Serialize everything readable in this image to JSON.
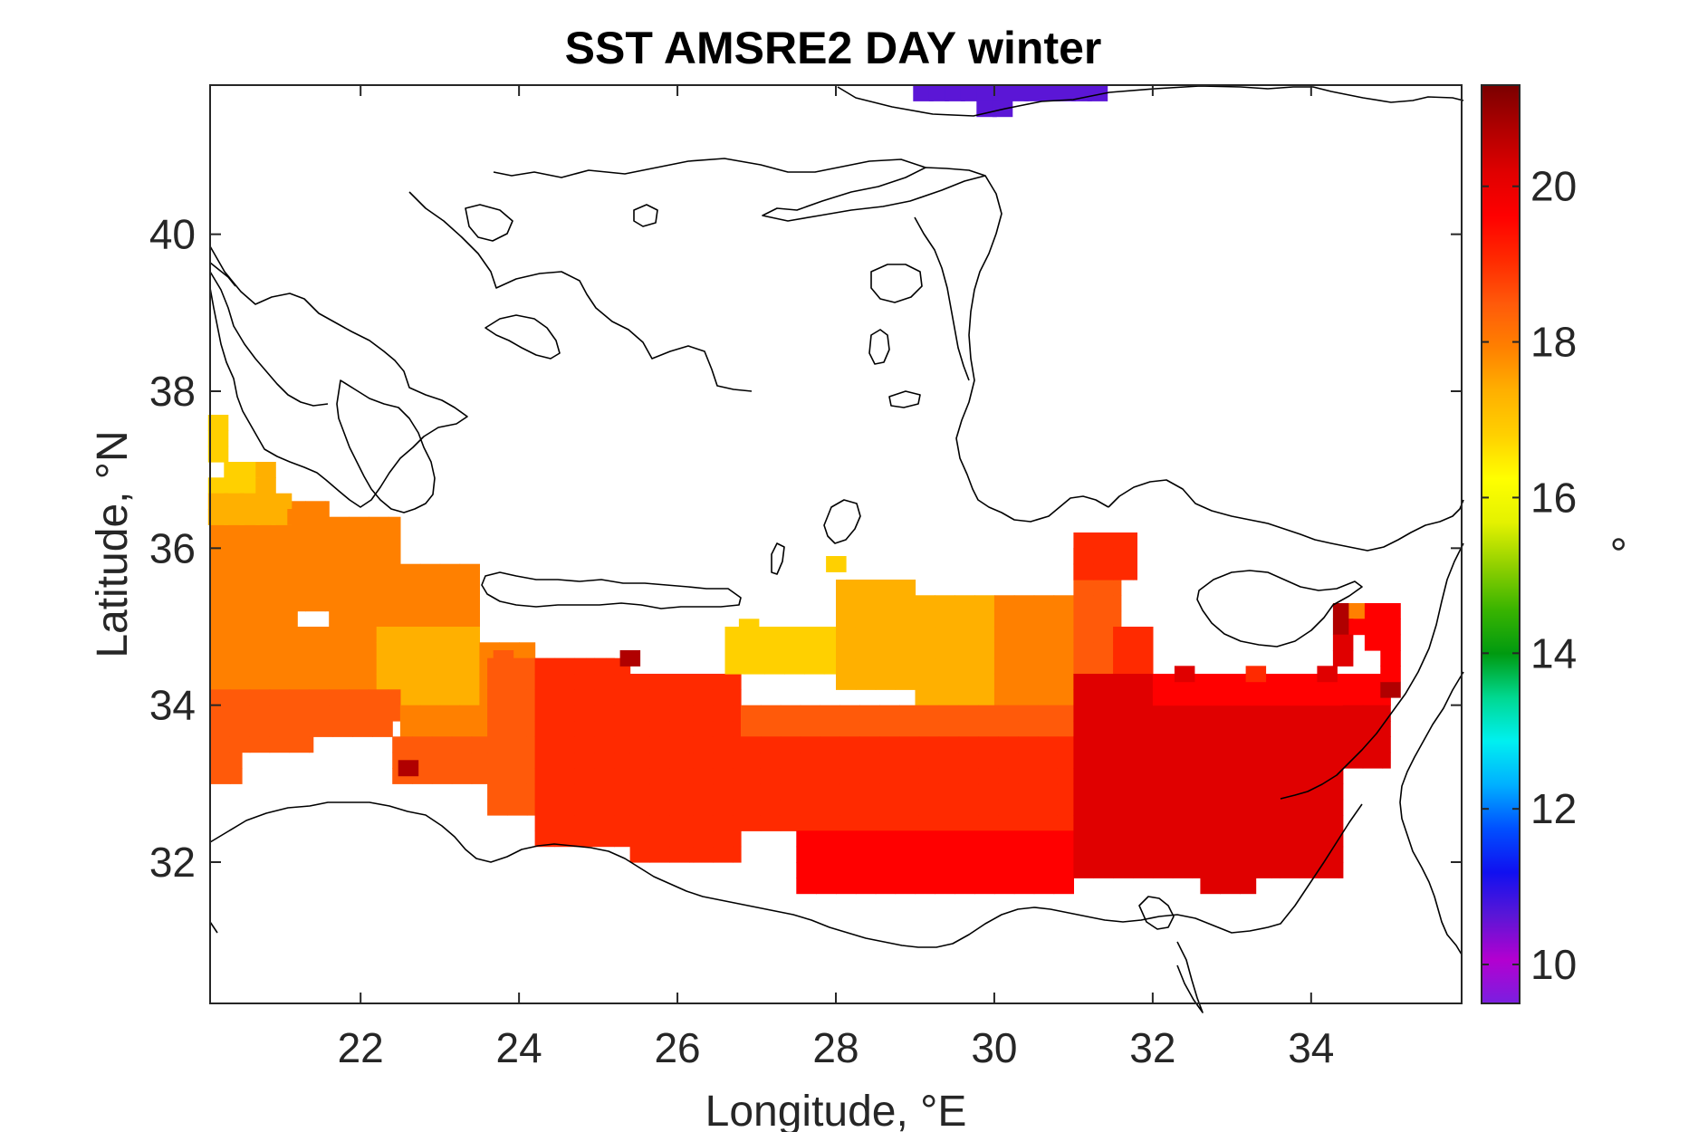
{
  "chart_data": {
    "type": "heatmap",
    "title": "SST AMSRE2 DAY winter",
    "xlabel": "Longitude, °E",
    "ylabel": "Latitude, °N",
    "colorbar_label": "°",
    "xlim": [
      20.1,
      35.9
    ],
    "ylim": [
      30.2,
      41.9
    ],
    "xticks": [
      "22",
      "24",
      "26",
      "28",
      "30",
      "32",
      "34"
    ],
    "yticks": [
      "32",
      "34",
      "36",
      "38",
      "40"
    ],
    "colorbar_ticks": [
      "10",
      "12",
      "14",
      "16",
      "18",
      "20"
    ],
    "colorbar_range": [
      9.5,
      21.3
    ],
    "colormap": [
      "#7a1fe0",
      "#b300d0",
      "#5b16d6",
      "#1010f0",
      "#0050ff",
      "#00b0ff",
      "#00f0f0",
      "#00d890",
      "#009a10",
      "#39b400",
      "#90d000",
      "#e4f200",
      "#ffff00",
      "#ffd000",
      "#ffb000",
      "#ff8000",
      "#ff5a0a",
      "#ff2a00",
      "#ff0000",
      "#e00000",
      "#b00000",
      "#7a0000"
    ],
    "grid": false,
    "cell_size_deg": [
      0.25,
      0.2
    ],
    "cells": [
      [
        29.1,
        41.8,
        10.6
      ],
      [
        29.3,
        41.8,
        10.6
      ],
      [
        29.5,
        41.8,
        10.6
      ],
      [
        29.7,
        41.8,
        10.6
      ],
      [
        29.9,
        41.8,
        10.6
      ],
      [
        30.1,
        41.8,
        10.6
      ],
      [
        30.3,
        41.8,
        10.6
      ],
      [
        30.5,
        41.8,
        10.6
      ],
      [
        30.7,
        41.8,
        10.6
      ],
      [
        30.9,
        41.8,
        10.6
      ],
      [
        31.1,
        41.8,
        10.6
      ],
      [
        31.3,
        41.8,
        10.6
      ],
      [
        29.9,
        41.6,
        10.6
      ],
      [
        30.1,
        41.6,
        10.6
      ],
      [
        20.2,
        37.6,
        16.9
      ],
      [
        20.2,
        37.4,
        16.9
      ],
      [
        20.2,
        37.2,
        16.9
      ],
      [
        20.4,
        37.0,
        17.0
      ],
      [
        20.6,
        37.0,
        17.0
      ],
      [
        20.8,
        37.0,
        17.2
      ],
      [
        20.2,
        36.8,
        17.0
      ],
      [
        20.4,
        36.8,
        16.8
      ],
      [
        20.6,
        36.8,
        17.0
      ],
      [
        20.8,
        36.8,
        17.2
      ],
      [
        20.2,
        36.6,
        17.2
      ],
      [
        20.4,
        36.6,
        17.2
      ],
      [
        20.6,
        36.6,
        17.3
      ],
      [
        20.8,
        36.6,
        17.4
      ],
      [
        21.0,
        36.6,
        17.5
      ],
      [
        20.2,
        36.4,
        17.4
      ],
      [
        20.4,
        36.4,
        17.5
      ],
      [
        20.6,
        36.4,
        17.6
      ],
      [
        20.8,
        36.4,
        17.6
      ],
      [
        21.0,
        36.4,
        17.6
      ],
      [
        21.2,
        36.4,
        17.9
      ],
      [
        34.4,
        35.2,
        20.8
      ],
      [
        34.6,
        35.2,
        18.1
      ],
      [
        34.8,
        35.2,
        19.5
      ],
      [
        35.0,
        35.2,
        19.6
      ],
      [
        34.4,
        35.0,
        20.8
      ],
      [
        34.6,
        35.0,
        19.5
      ],
      [
        34.8,
        35.0,
        19.5
      ],
      [
        35.0,
        35.0,
        19.6
      ],
      [
        35.0,
        34.2,
        20.7
      ],
      [
        32.4,
        34.4,
        20.0
      ],
      [
        33.3,
        34.4,
        18.8
      ],
      [
        25.4,
        34.6,
        20.9
      ],
      [
        23.8,
        34.6,
        18.3
      ],
      [
        22.6,
        33.2,
        20.8
      ],
      [
        26.9,
        35.0,
        16.9
      ],
      [
        28.0,
        35.8,
        16.8
      ],
      [
        34.4,
        34.8,
        19.9
      ],
      [
        34.4,
        34.6,
        19.9
      ],
      [
        34.2,
        34.4,
        19.9
      ],
      [
        34.8,
        34.8,
        19.8
      ],
      [
        35.0,
        34.8,
        19.8
      ],
      [
        35.0,
        34.6,
        19.8
      ],
      [
        35.0,
        34.4,
        19.8
      ]
    ],
    "regions": [
      {
        "lon": [
          20.1,
          20.8
        ],
        "lat": [
          35.4,
          36.3
        ],
        "value": 18.0
      },
      {
        "lon": [
          20.8,
          21.6
        ],
        "lat": [
          35.2,
          36.6
        ],
        "value": 18.2
      },
      {
        "lon": [
          21.6,
          22.5
        ],
        "lat": [
          35.0,
          36.4
        ],
        "value": 18.1
      },
      {
        "lon": [
          22.5,
          23.5
        ],
        "lat": [
          34.8,
          35.8
        ],
        "value": 17.9
      },
      {
        "lon": [
          20.1,
          21.2
        ],
        "lat": [
          34.2,
          35.4
        ],
        "value": 18.0
      },
      {
        "lon": [
          21.2,
          22.2
        ],
        "lat": [
          34.0,
          35.0
        ],
        "value": 17.7
      },
      {
        "lon": [
          22.2,
          23.5
        ],
        "lat": [
          34.0,
          35.0
        ],
        "value": 17.4
      },
      {
        "lon": [
          23.5,
          24.2
        ],
        "lat": [
          34.0,
          34.8
        ],
        "value": 17.7
      },
      {
        "lon": [
          20.1,
          22.5
        ],
        "lat": [
          33.8,
          34.2
        ],
        "value": 18.4
      },
      {
        "lon": [
          22.5,
          24.2
        ],
        "lat": [
          33.6,
          34.0
        ],
        "value": 18.1
      },
      {
        "lon": [
          20.1,
          21.4
        ],
        "lat": [
          33.4,
          33.8
        ],
        "value": 18.6
      },
      {
        "lon": [
          21.4,
          22.4
        ],
        "lat": [
          33.6,
          33.8
        ],
        "value": 18.4
      },
      {
        "lon": [
          20.1,
          20.5
        ],
        "lat": [
          33.0,
          33.4
        ],
        "value": 18.7
      },
      {
        "lon": [
          22.4,
          24.2
        ],
        "lat": [
          33.0,
          33.6
        ],
        "value": 18.5
      },
      {
        "lon": [
          23.6,
          25.2
        ],
        "lat": [
          32.6,
          34.6
        ],
        "value": 18.7
      },
      {
        "lon": [
          24.2,
          25.4
        ],
        "lat": [
          32.2,
          34.6
        ],
        "value": 18.9
      },
      {
        "lon": [
          25.4,
          26.2
        ],
        "lat": [
          32.0,
          34.4
        ],
        "value": 19.0
      },
      {
        "lon": [
          26.2,
          26.8
        ],
        "lat": [
          32.0,
          34.4
        ],
        "value": 18.8
      },
      {
        "lon": [
          26.6,
          28.0
        ],
        "lat": [
          34.4,
          35.0
        ],
        "value": 17.0
      },
      {
        "lon": [
          28.0,
          29.0
        ],
        "lat": [
          34.2,
          35.6
        ],
        "value": 17.2
      },
      {
        "lon": [
          29.0,
          30.0
        ],
        "lat": [
          34.0,
          35.4
        ],
        "value": 17.6
      },
      {
        "lon": [
          30.0,
          31.0
        ],
        "lat": [
          34.0,
          35.4
        ],
        "value": 18.0
      },
      {
        "lon": [
          31.0,
          31.6
        ],
        "lat": [
          34.0,
          36.0
        ],
        "value": 18.5
      },
      {
        "lon": [
          31.0,
          31.8
        ],
        "lat": [
          35.6,
          36.2
        ],
        "value": 18.9
      },
      {
        "lon": [
          26.8,
          31.0
        ],
        "lat": [
          33.6,
          34.0
        ],
        "value": 18.3
      },
      {
        "lon": [
          26.8,
          31.5
        ],
        "lat": [
          32.4,
          33.6
        ],
        "value": 19.0
      },
      {
        "lon": [
          31.5,
          32.0
        ],
        "lat": [
          33.0,
          35.0
        ],
        "value": 19.2
      },
      {
        "lon": [
          27.5,
          31.0
        ],
        "lat": [
          31.6,
          32.4
        ],
        "value": 19.5
      },
      {
        "lon": [
          31.0,
          33.6
        ],
        "lat": [
          31.8,
          34.4
        ],
        "value": 19.9
      },
      {
        "lon": [
          33.6,
          34.4
        ],
        "lat": [
          31.8,
          34.4
        ],
        "value": 20.2
      },
      {
        "lon": [
          32.0,
          35.0
        ],
        "lat": [
          34.0,
          34.4
        ],
        "value": 19.8
      },
      {
        "lon": [
          34.4,
          35.0
        ],
        "lat": [
          33.2,
          34.0
        ],
        "value": 20.0
      },
      {
        "lon": [
          32.6,
          33.3
        ],
        "lat": [
          31.6,
          31.8
        ],
        "value": 20.0
      }
    ]
  }
}
